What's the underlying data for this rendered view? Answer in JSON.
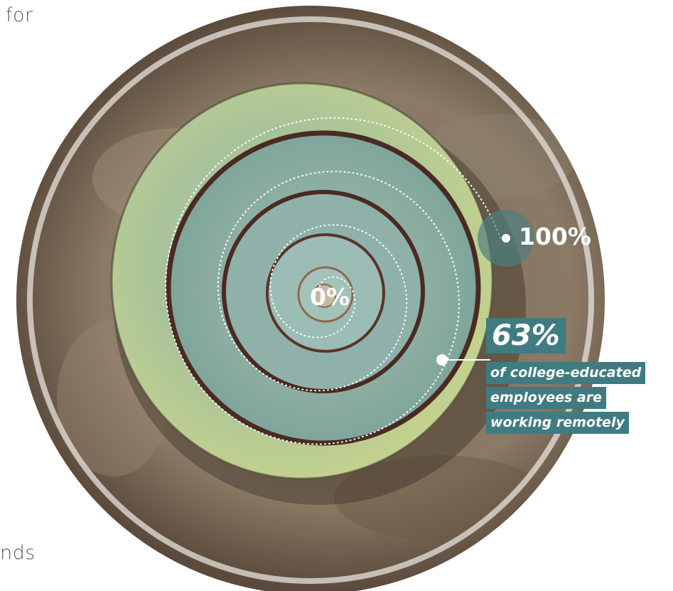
{
  "page_fragments": {
    "top_left": "for",
    "bottom_left": "nds"
  },
  "labels": {
    "start": "0%",
    "end": "100%"
  },
  "stat": {
    "value": "63%",
    "caption_lines": [
      "of college-educated",
      "employees are",
      "working remotely"
    ]
  },
  "progress": {
    "shown_fraction": 0.63
  },
  "colors": {
    "accent": "#3f7b80",
    "side_text": "#555a5c",
    "background_ring": "#e8e3de"
  }
}
